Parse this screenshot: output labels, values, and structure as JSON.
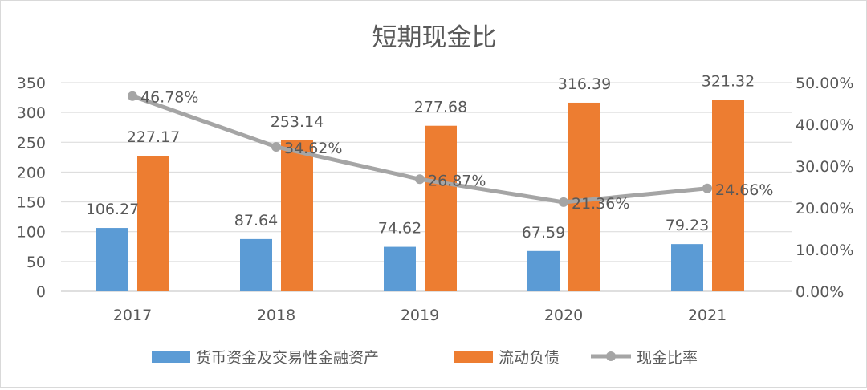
{
  "chart_data": {
    "type": "bar+line",
    "title": "短期现金比",
    "categories": [
      "2017",
      "2018",
      "2019",
      "2020",
      "2021"
    ],
    "series": [
      {
        "name": "货币资金及交易性金融资产",
        "type": "bar",
        "axis": "left",
        "color": "#5B9BD5",
        "values": [
          106.27,
          87.64,
          74.62,
          67.59,
          79.23
        ],
        "labels": [
          "106.27",
          "87.64",
          "74.62",
          "67.59",
          "79.23"
        ]
      },
      {
        "name": "流动负债",
        "type": "bar",
        "axis": "left",
        "color": "#ED7D31",
        "values": [
          227.17,
          253.14,
          277.68,
          316.39,
          321.32
        ],
        "labels": [
          "227.17",
          "253.14",
          "277.68",
          "316.39",
          "321.32"
        ]
      },
      {
        "name": "现金比率",
        "type": "line",
        "axis": "right",
        "color": "#A5A5A5",
        "values": [
          46.78,
          34.62,
          26.87,
          21.36,
          24.66
        ],
        "labels": [
          "46.78%",
          "34.62%",
          "26.87%",
          "21.36%",
          "24.66%"
        ]
      }
    ],
    "left_axis": {
      "ylim": [
        0,
        350
      ],
      "ticks": [
        "0",
        "50",
        "100",
        "150",
        "200",
        "250",
        "300",
        "350"
      ]
    },
    "right_axis": {
      "ylim": [
        0,
        50
      ],
      "ticks": [
        "0.00%",
        "10.00%",
        "20.00%",
        "30.00%",
        "40.00%",
        "50.00%"
      ]
    },
    "grid": true,
    "legend": "bottom"
  }
}
